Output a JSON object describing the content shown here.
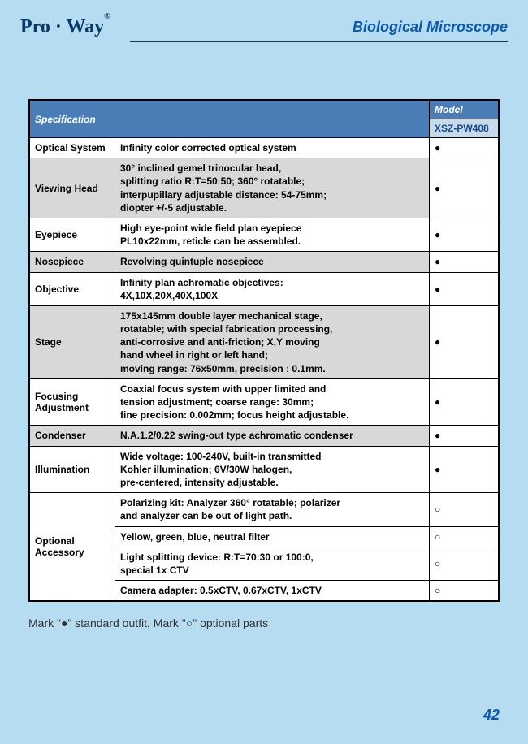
{
  "header": {
    "logo_text": "Pro · Way",
    "logo_mark": "®",
    "title": "Biological Microscope"
  },
  "table": {
    "title": "Specification",
    "model_header": "Model",
    "model_code": "XSZ-PW408",
    "rows": [
      {
        "label": "Optical System",
        "desc": "Infinity color corrected optical system",
        "mark": "●",
        "gray": false,
        "rowspan": 1
      },
      {
        "label": "Viewing Head",
        "desc": "30° inclined gemel trinocular head,\nsplitting ratio R:T=50:50; 360° rotatable;\ninterpupillary adjustable distance: 54-75mm;\ndiopter +/-5 adjustable.",
        "mark": "●",
        "gray": true,
        "rowspan": 1
      },
      {
        "label": "Eyepiece",
        "desc": "High eye-point wide field plan eyepiece\nPL10x22mm, reticle can be assembled.",
        "mark": "●",
        "gray": false,
        "rowspan": 1
      },
      {
        "label": "Nosepiece",
        "desc": "Revolving quintuple nosepiece",
        "mark": "●",
        "gray": true,
        "rowspan": 1
      },
      {
        "label": "Objective",
        "desc": "Infinity plan achromatic objectives:\n4X,10X,20X,40X,100X",
        "mark": "●",
        "gray": false,
        "rowspan": 1
      },
      {
        "label": "Stage",
        "desc": "175x145mm double layer mechanical stage,\nrotatable; with special fabrication processing,\nanti-corrosive and anti-friction; X,Y moving\nhand wheel in right or left hand;\nmoving range: 76x50mm, precision : 0.1mm.",
        "mark": "●",
        "gray": true,
        "rowspan": 1
      },
      {
        "label": "Focusing Adjustment",
        "desc": "Coaxial focus system with upper limited and\ntension adjustment; coarse range: 30mm;\nfine precision: 0.002mm; focus height adjustable.",
        "mark": "●",
        "gray": false,
        "rowspan": 1
      },
      {
        "label": "Condenser",
        "desc": "N.A.1.2/0.22 swing-out type achromatic condenser",
        "mark": "●",
        "gray": true,
        "rowspan": 1
      },
      {
        "label": "Illumination",
        "desc": "Wide voltage: 100-240V, built-in transmitted\nKohler illumination; 6V/30W halogen,\npre-centered, intensity adjustable.",
        "mark": "●",
        "gray": false,
        "rowspan": 1
      }
    ],
    "optional_label": "Optional Accessory",
    "optional_rows": [
      {
        "desc": "Polarizing kit: Analyzer 360° rotatable; polarizer\nand analyzer can be out of light path.",
        "mark": "○"
      },
      {
        "desc": "Yellow, green, blue, neutral filter",
        "mark": "○"
      },
      {
        "desc": "Light splitting device: R:T=70:30 or 100:0,\nspecial 1x CTV",
        "mark": "○"
      },
      {
        "desc": "Camera adapter: 0.5xCTV, 0.67xCTV, 1xCTV",
        "mark": "○"
      }
    ]
  },
  "legend": "Mark \"●\" standard outfit,  Mark \"○\" optional parts",
  "page_number": "42",
  "colors": {
    "page_bg": "#b5dcf0",
    "header_blue": "#4a7db5",
    "sub_blue": "#c5daea",
    "text_blue": "#0a5bb0",
    "gray": "#d8d8d8"
  }
}
